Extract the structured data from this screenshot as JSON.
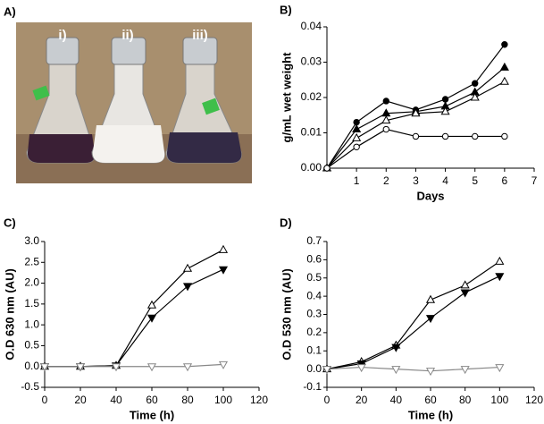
{
  "chart_data": [
    {
      "type": "image",
      "panel": "A)",
      "labels": [
        "i)",
        "ii)",
        "iii)"
      ]
    },
    {
      "type": "line",
      "panel": "B)",
      "xlabel": "Days",
      "ylabel": "g/mL wet weight",
      "x": [
        0,
        1,
        2,
        3,
        4,
        5,
        6
      ],
      "xlim": [
        0,
        7
      ],
      "xticks": [
        1,
        2,
        3,
        4,
        5,
        6,
        7
      ],
      "ylim": [
        0,
        0.04
      ],
      "yticks": [
        {
          "value": 0,
          "label": "0.00"
        },
        {
          "value": 0.01,
          "label": "0.01"
        },
        {
          "value": 0.02,
          "label": "0.02"
        },
        {
          "value": 0.03,
          "label": "0.03"
        },
        {
          "value": 0.04,
          "label": "0.04"
        }
      ],
      "series": [
        {
          "color": "#000000",
          "marker": "circle",
          "filled": true,
          "values": [
            0,
            0.013,
            0.019,
            0.0165,
            0.0195,
            0.024,
            0.035
          ]
        },
        {
          "color": "#000000",
          "marker": "triangle-up",
          "filled": true,
          "values": [
            0,
            0.011,
            0.0155,
            0.016,
            0.0175,
            0.0215,
            0.0285
          ]
        },
        {
          "color": "#000000",
          "marker": "triangle-up",
          "filled": false,
          "values": [
            0,
            0.0085,
            0.0135,
            0.0155,
            0.016,
            0.02,
            0.0245
          ]
        },
        {
          "color": "#000000",
          "marker": "circle",
          "filled": false,
          "values": [
            0,
            0.006,
            0.011,
            0.009,
            0.009,
            0.009,
            0.009
          ]
        }
      ]
    },
    {
      "type": "line",
      "panel": "C)",
      "xlabel": "Time (h)",
      "ylabel": "O.D 630 nm (AU)",
      "x": [
        0,
        20,
        40,
        60,
        80,
        100
      ],
      "xlim": [
        0,
        120
      ],
      "xticks": [
        0,
        20,
        40,
        60,
        80,
        100,
        120
      ],
      "ylim": [
        -0.5,
        3.0
      ],
      "yticks": [
        -0.5,
        {
          "value": 0,
          "label": "0.0"
        },
        0.5,
        {
          "value": 1,
          "label": "1.0"
        },
        1.5,
        {
          "value": 2,
          "label": "2.0"
        },
        2.5,
        {
          "value": 3,
          "label": "3.0"
        }
      ],
      "series": [
        {
          "color": "#000000",
          "marker": "triangle-up",
          "filled": false,
          "values": [
            0,
            0,
            0.02,
            1.47,
            2.35,
            2.8
          ]
        },
        {
          "color": "#000000",
          "marker": "triangle-down",
          "filled": true,
          "values": [
            0,
            0,
            0.02,
            1.17,
            1.93,
            2.33
          ]
        },
        {
          "color": "#888888",
          "marker": "triangle-down",
          "filled": false,
          "values": [
            0,
            0,
            0,
            0,
            0,
            0.05
          ]
        }
      ]
    },
    {
      "type": "line",
      "panel": "D)",
      "xlabel": "Time (h)",
      "ylabel": "O.D 530 nm (AU)",
      "x": [
        0,
        20,
        40,
        60,
        80,
        100
      ],
      "xlim": [
        0,
        120
      ],
      "xticks": [
        0,
        20,
        40,
        60,
        80,
        100,
        120
      ],
      "ylim": [
        -0.1,
        0.7
      ],
      "yticks": [
        -0.1,
        {
          "value": 0,
          "label": "0.0"
        },
        0.1,
        0.2,
        0.3,
        0.4,
        0.5,
        0.6,
        0.7
      ],
      "series": [
        {
          "color": "#000000",
          "marker": "triangle-up",
          "filled": false,
          "values": [
            0,
            0.04,
            0.13,
            0.38,
            0.46,
            0.59
          ]
        },
        {
          "color": "#000000",
          "marker": "triangle-down",
          "filled": true,
          "values": [
            0,
            0.03,
            0.12,
            0.28,
            0.42,
            0.51
          ]
        },
        {
          "color": "#888888",
          "marker": "triangle-down",
          "filled": false,
          "values": [
            0,
            0.01,
            0,
            -0.01,
            0,
            0.01
          ]
        }
      ]
    }
  ]
}
